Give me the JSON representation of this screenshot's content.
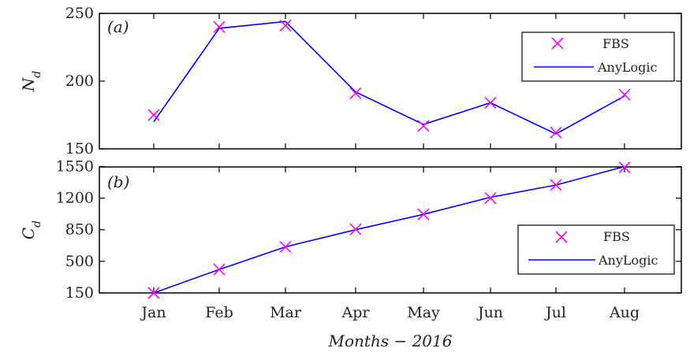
{
  "chart_data": [
    {
      "type": "line",
      "panel_label": "(a)",
      "ylabel": "N_d",
      "ylim": [
        150,
        250
      ],
      "yticks": [
        "150",
        "200",
        "250"
      ],
      "categories": [
        "Jan",
        "Feb",
        "Mar",
        "Apr",
        "May",
        "Jun",
        "Jul",
        "Aug"
      ],
      "legend_position": "top-right",
      "series": [
        {
          "name": "FBS",
          "marker": "x",
          "color": "#ff00ff",
          "values": [
            175,
            240,
            241,
            191,
            167,
            184,
            162,
            190
          ]
        },
        {
          "name": "AnyLogic",
          "marker": "line",
          "color": "#0000ff",
          "values": [
            170,
            239,
            244,
            192,
            168,
            184,
            161,
            189
          ]
        }
      ]
    },
    {
      "type": "line",
      "panel_label": "(b)",
      "ylabel": "C_d",
      "ylim": [
        150,
        1650
      ],
      "yticks": [
        "150",
        "500",
        "850",
        "1200",
        "1550"
      ],
      "categories": [
        "Jan",
        "Feb",
        "Mar",
        "Apr",
        "May",
        "Jun",
        "Jul",
        "Aug"
      ],
      "xlabel": "Months − 2016",
      "legend_position": "right",
      "series": [
        {
          "name": "FBS",
          "marker": "x",
          "color": "#ff00ff",
          "values": [
            150,
            410,
            660,
            855,
            1020,
            1200,
            1345,
            1540
          ]
        },
        {
          "name": "AnyLogic",
          "marker": "line",
          "color": "#0000ff",
          "values": [
            150,
            410,
            660,
            850,
            1020,
            1210,
            1345,
            1550
          ]
        }
      ]
    }
  ]
}
